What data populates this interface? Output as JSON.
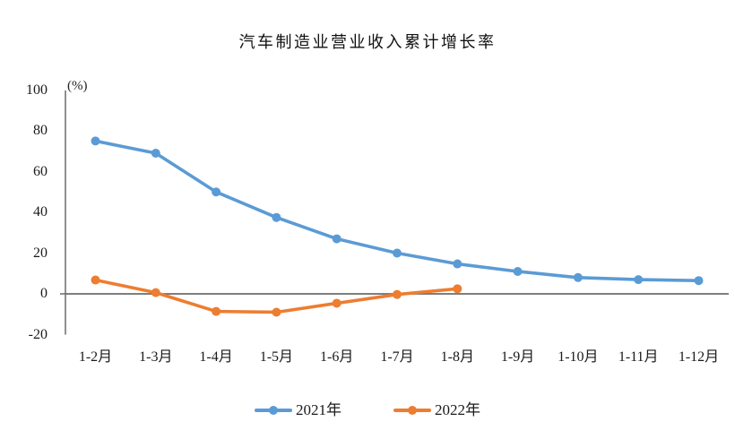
{
  "title": "汽车制造业营业收入累计增长率",
  "y_axis": {
    "unit_label": "(%)",
    "ticks": [
      100,
      80,
      60,
      40,
      20,
      0,
      -20
    ]
  },
  "chart_data": {
    "type": "line",
    "title": "汽车制造业营业收入累计增长率",
    "ylabel": "(%)",
    "ylim": [
      -20,
      100
    ],
    "grid": false,
    "legend_position": "bottom",
    "categories": [
      "1-2月",
      "1-3月",
      "1-4月",
      "1-5月",
      "1-6月",
      "1-7月",
      "1-8月",
      "1-9月",
      "1-10月",
      "1-11月",
      "1-12月"
    ],
    "series": [
      {
        "name": "2021年",
        "color": "#5B9BD5",
        "values": [
          75,
          69,
          50,
          37.5,
          27,
          20,
          14.7,
          11,
          8,
          7,
          6.5
        ]
      },
      {
        "name": "2022年",
        "color": "#ED7D31",
        "values": [
          6.8,
          0.6,
          -8.6,
          -9,
          -4.6,
          -0.3,
          2.5
        ]
      }
    ],
    "axis_color": "#6b6b6b"
  }
}
